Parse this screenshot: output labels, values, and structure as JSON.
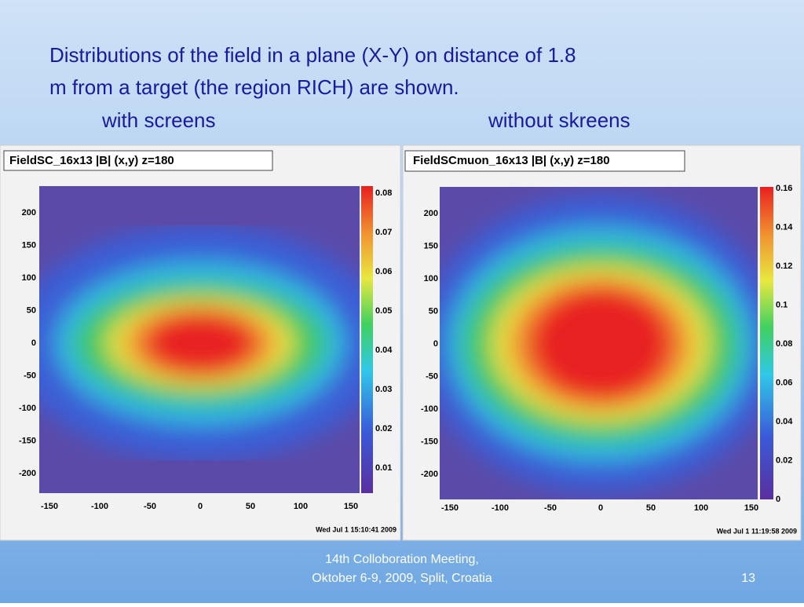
{
  "slide": {
    "title_lines": [
      "Distributions of the field in a plane (X-Y) on distance of 1.8",
      "m from a target (the region RICH) are shown."
    ],
    "captions": [
      "with screens",
      "without skreens"
    ],
    "panels": [
      {
        "title": "FieldSC_16x13  |B| (x,y) z=180",
        "xticks": [
          -150,
          -100,
          -50,
          0,
          50,
          100,
          150
        ],
        "yticks": [
          200,
          150,
          100,
          50,
          0,
          -50,
          -100,
          -150,
          -200
        ],
        "colorbar_ticks": [
          0.01,
          0.02,
          0.03,
          0.04,
          0.05,
          0.06,
          0.07,
          0.08
        ],
        "timestamp": "Wed Jul  1 15:10:41 2009"
      },
      {
        "title": "FieldSCmuon_16x13  |B| (x,y) z=180",
        "xticks": [
          -150,
          -100,
          -50,
          0,
          50,
          100,
          150
        ],
        "yticks": [
          200,
          150,
          100,
          50,
          0,
          -50,
          -100,
          -150,
          -200
        ],
        "colorbar_ticks": [
          0,
          0.02,
          0.04,
          0.06,
          0.08,
          0.1,
          0.12,
          0.14,
          0.16
        ],
        "timestamp": "Wed Jul  1 11:19:58 2009"
      }
    ],
    "footer": [
      "14th Colloboration Meeting,",
      "Oktober 6-9, 2009, Split, Croatia"
    ],
    "page_number": "13"
  }
}
